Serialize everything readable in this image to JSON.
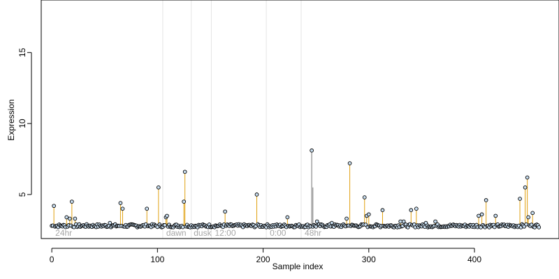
{
  "chart_data": {
    "type": "scatter",
    "title": "",
    "xlabel": "Sample index",
    "ylabel": "Expression",
    "xlim": [
      -10,
      480
    ],
    "ylim": [
      1.9,
      18.7
    ],
    "x_ticks": [
      0,
      100,
      200,
      300,
      400
    ],
    "y_ticks": [
      5,
      10,
      15
    ],
    "baseline": 2.8,
    "grid": false,
    "legend": "none",
    "n_samples": 462,
    "colors": {
      "stem": "#e0a010",
      "stem_gray": "#a6a6a6",
      "vline": "#e6e6e6",
      "point_fill": "#c8ddef",
      "point_stroke": "#000000",
      "axis": "#000000",
      "annotation": "#a6a6a6"
    },
    "vlines": [
      105,
      132,
      151,
      203,
      236
    ],
    "annotations": [
      {
        "text": "24hr",
        "x": 2
      },
      {
        "text": "dawn",
        "x": 107
      },
      {
        "text": "dusk",
        "x": 133
      },
      {
        "text": "12:00",
        "x": 153
      },
      {
        "text": "0:00",
        "x": 205
      },
      {
        "text": "48hr",
        "x": 238
      }
    ],
    "peaks": [
      {
        "x": 2,
        "y": 4.2
      },
      {
        "x": 14,
        "y": 3.4
      },
      {
        "x": 17,
        "y": 3.3
      },
      {
        "x": 19,
        "y": 4.5
      },
      {
        "x": 22,
        "y": 3.3
      },
      {
        "x": 55,
        "y": 3.0
      },
      {
        "x": 65,
        "y": 4.4
      },
      {
        "x": 67,
        "y": 4.0
      },
      {
        "x": 90,
        "y": 4.0
      },
      {
        "x": 101,
        "y": 5.5
      },
      {
        "x": 108,
        "y": 3.4
      },
      {
        "x": 109,
        "y": 3.5
      },
      {
        "x": 125,
        "y": 4.5
      },
      {
        "x": 126,
        "y": 6.6
      },
      {
        "x": 164,
        "y": 3.8
      },
      {
        "x": 194,
        "y": 5.0
      },
      {
        "x": 223,
        "y": 3.4
      },
      {
        "x": 251,
        "y": 3.1
      },
      {
        "x": 265,
        "y": 3.0
      },
      {
        "x": 279,
        "y": 3.3
      },
      {
        "x": 282,
        "y": 7.2
      },
      {
        "x": 296,
        "y": 4.8
      },
      {
        "x": 298,
        "y": 3.5
      },
      {
        "x": 300,
        "y": 3.6
      },
      {
        "x": 313,
        "y": 3.9
      },
      {
        "x": 330,
        "y": 3.1
      },
      {
        "x": 333,
        "y": 3.1
      },
      {
        "x": 340,
        "y": 3.9
      },
      {
        "x": 345,
        "y": 4.0
      },
      {
        "x": 354,
        "y": 3.0
      },
      {
        "x": 363,
        "y": 3.1
      },
      {
        "x": 404,
        "y": 3.5
      },
      {
        "x": 407,
        "y": 3.6
      },
      {
        "x": 411,
        "y": 4.6
      },
      {
        "x": 420,
        "y": 3.5
      },
      {
        "x": 443,
        "y": 4.7
      },
      {
        "x": 448,
        "y": 5.5
      },
      {
        "x": 450,
        "y": 6.2
      },
      {
        "x": 451,
        "y": 3.4
      },
      {
        "x": 455,
        "y": 3.7
      }
    ],
    "gray_peaks": [
      {
        "x": 246,
        "y": 8.1,
        "marker": true
      },
      {
        "x": 247,
        "y": 5.5,
        "marker": false
      }
    ]
  }
}
